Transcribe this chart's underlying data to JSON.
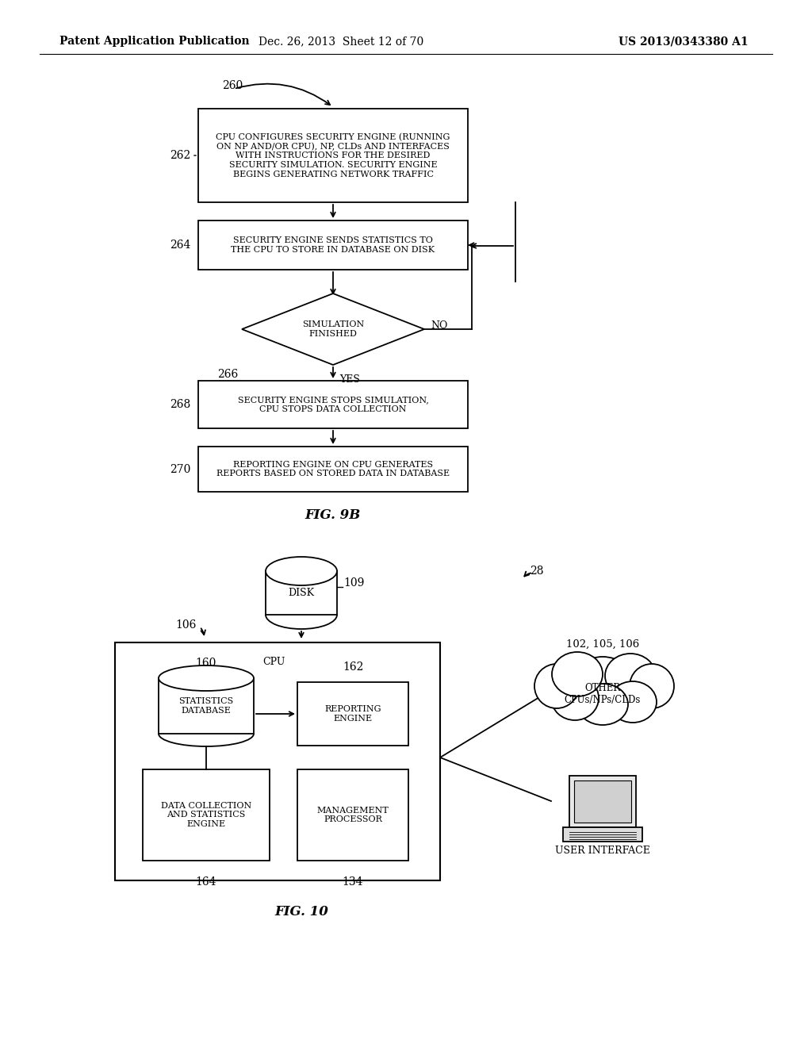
{
  "header_left": "Patent Application Publication",
  "header_mid": "Dec. 26, 2013  Sheet 12 of 70",
  "header_right": "US 2013/0343380 A1",
  "fig9b_label": "FIG. 9B",
  "fig10_label": "FIG. 10",
  "bg_color": "#ffffff"
}
